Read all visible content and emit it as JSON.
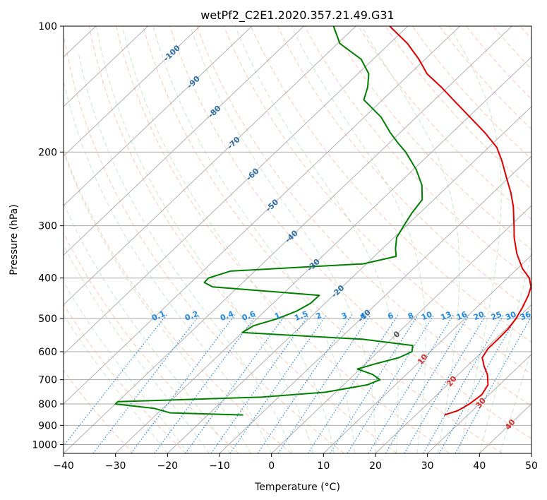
{
  "chart_data": {
    "type": "line",
    "title": "wetPf2_C2E1.2020.357.21.49.G31",
    "xlabel": "Temperature (°C)",
    "ylabel": "Pressure (hPa)",
    "xlim": [
      -40,
      50
    ],
    "ylim": [
      1050,
      100
    ],
    "y_scale": "log",
    "skew": true,
    "grid": true,
    "x_ticks": [
      -40,
      -30,
      -20,
      -10,
      0,
      10,
      20,
      30,
      40,
      50
    ],
    "y_ticks": [
      1000,
      900,
      800,
      700,
      600,
      500,
      400,
      300,
      200,
      100
    ],
    "temperature_color": "#e00000",
    "dewpoint_color": "#008000",
    "dry_adiabat_color": "#f7a58a",
    "moist_adiabat_color": "#9acd9a",
    "mixing_ratio_color": "#1e88e5",
    "isotherm_color": "#9e9e9e",
    "series": [
      {
        "name": "",
        "color": "#e00000",
        "points": [
          [
            850,
            25.5
          ],
          [
            830,
            27.2
          ],
          [
            800,
            28.1
          ],
          [
            760,
            28.6
          ],
          [
            720,
            27.8
          ],
          [
            680,
            25.6
          ],
          [
            650,
            23.3
          ],
          [
            620,
            21.2
          ],
          [
            590,
            20.5
          ],
          [
            560,
            20.5
          ],
          [
            530,
            20.4
          ],
          [
            500,
            19.8
          ],
          [
            470,
            18.8
          ],
          [
            440,
            17.5
          ],
          [
            420,
            16.3
          ],
          [
            400,
            14.2
          ],
          [
            380,
            11.0
          ],
          [
            350,
            6.9
          ],
          [
            320,
            3.1
          ],
          [
            300,
            0.7
          ],
          [
            270,
            -3.3
          ],
          [
            250,
            -6.6
          ],
          [
            230,
            -10.5
          ],
          [
            210,
            -14.7
          ],
          [
            195,
            -18.4
          ],
          [
            180,
            -23.6
          ],
          [
            165,
            -29.7
          ],
          [
            150,
            -36.4
          ],
          [
            140,
            -41.2
          ],
          [
            130,
            -46.7
          ],
          [
            120,
            -51.2
          ],
          [
            110,
            -56.6
          ],
          [
            100,
            -63.5
          ]
        ]
      },
      {
        "name": "",
        "color": "#008000",
        "points": [
          [
            850,
            -13.2
          ],
          [
            840,
            -27.7
          ],
          [
            820,
            -31.5
          ],
          [
            800,
            -40.0
          ],
          [
            790,
            -40.0
          ],
          [
            770,
            -13.1
          ],
          [
            750,
            -2.0
          ],
          [
            720,
            4.6
          ],
          [
            700,
            6.0
          ],
          [
            680,
            3.5
          ],
          [
            660,
            -0.5
          ],
          [
            640,
            2.1
          ],
          [
            620,
            5.2
          ],
          [
            600,
            6.5
          ],
          [
            580,
            5.4
          ],
          [
            560,
            -5.6
          ],
          [
            540,
            -30.0
          ],
          [
            520,
            -29.2
          ],
          [
            500,
            -26.0
          ],
          [
            480,
            -23.9
          ],
          [
            460,
            -22.8
          ],
          [
            440,
            -22.7
          ],
          [
            420,
            -44.9
          ],
          [
            410,
            -47.4
          ],
          [
            400,
            -47.5
          ],
          [
            385,
            -44.7
          ],
          [
            370,
            -20.6
          ],
          [
            355,
            -15.8
          ],
          [
            340,
            -17.5
          ],
          [
            320,
            -19.5
          ],
          [
            300,
            -20.5
          ],
          [
            280,
            -21.5
          ],
          [
            260,
            -22.2
          ],
          [
            240,
            -25.2
          ],
          [
            220,
            -29.5
          ],
          [
            200,
            -35.0
          ],
          [
            190,
            -38.4
          ],
          [
            180,
            -41.8
          ],
          [
            165,
            -46.8
          ],
          [
            150,
            -53.6
          ],
          [
            140,
            -55.4
          ],
          [
            130,
            -57.9
          ],
          [
            120,
            -62.3
          ],
          [
            110,
            -69.6
          ],
          [
            100,
            -74.3
          ]
        ]
      }
    ],
    "isotherm_labels": [
      {
        "text": "-100",
        "p": 116
      },
      {
        "text": "-90",
        "p": 136
      },
      {
        "text": "-80",
        "p": 160
      },
      {
        "text": "-70",
        "p": 190
      },
      {
        "text": "-60",
        "p": 226
      },
      {
        "text": "-50",
        "p": 268
      },
      {
        "text": "-40",
        "p": 318
      },
      {
        "text": "-30",
        "p": 372
      },
      {
        "text": "-20",
        "p": 430
      },
      {
        "text": "-10",
        "p": 492
      },
      {
        "text": "0",
        "p": 545
      }
    ],
    "dry_adiabat_labels": [
      {
        "text": "10",
        "p": 625
      },
      {
        "text": "20",
        "p": 705
      },
      {
        "text": "30",
        "p": 795
      },
      {
        "text": "40",
        "p": 895
      }
    ],
    "mixing_ratio_labels": [
      "0.1",
      "0.2",
      "0.4",
      "0.6",
      "1",
      "1.5",
      "2",
      "3",
      "4",
      "6",
      "8",
      "10",
      "13",
      "16",
      "20",
      "25",
      "30",
      "36"
    ]
  }
}
